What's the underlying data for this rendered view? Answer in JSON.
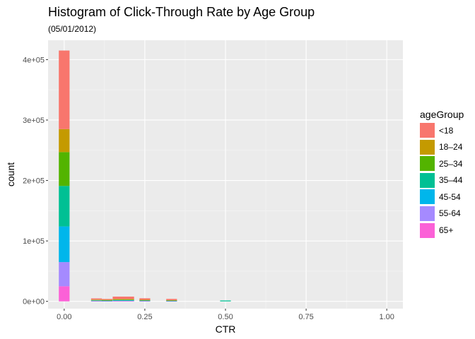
{
  "chart_data": {
    "type": "bar",
    "title": "Histogram of Click-Through Rate by Age Group",
    "subtitle": "(05/01/2012)",
    "xlabel": "CTR",
    "ylabel": "count",
    "xlim": [
      -0.05,
      1.05
    ],
    "ylim": [
      -12000,
      432000
    ],
    "x_ticks": [
      0,
      0.25,
      0.5,
      0.75,
      1
    ],
    "x_tick_labels": [
      "0.00",
      "0.25",
      "0.50",
      "0.75",
      "1.00"
    ],
    "y_ticks": [
      0,
      100000,
      200000,
      300000,
      400000
    ],
    "y_tick_labels": [
      "0e+00",
      "1e+05",
      "2e+05",
      "3e+05",
      "4e+05"
    ],
    "bin_width": 0.0333,
    "bins": [
      0,
      0.1,
      0.133,
      0.167,
      0.2,
      0.25,
      0.333,
      0.5
    ],
    "stacked": true,
    "legend_title": "ageGroup",
    "legend_position": "right",
    "grid": true,
    "series": [
      {
        "name": "<18",
        "color": "#F8766D",
        "values": [
          130000,
          2000,
          1500,
          4000,
          4000,
          2500,
          2000,
          0
        ]
      },
      {
        "name": "18–24",
        "color": "#C49A00",
        "values": [
          38000,
          600,
          500,
          900,
          900,
          500,
          500,
          0
        ]
      },
      {
        "name": "25–34",
        "color": "#53B400",
        "values": [
          56000,
          600,
          500,
          800,
          800,
          500,
          400,
          0
        ]
      },
      {
        "name": "35–44",
        "color": "#00C094",
        "values": [
          67000,
          500,
          500,
          700,
          700,
          500,
          400,
          1500
        ]
      },
      {
        "name": "45-54",
        "color": "#00B6EB",
        "values": [
          59000,
          500,
          400,
          600,
          600,
          400,
          300,
          0
        ]
      },
      {
        "name": "55-64",
        "color": "#A58AFF",
        "values": [
          40000,
          400,
          300,
          500,
          500,
          400,
          300,
          0
        ]
      },
      {
        "name": "65+",
        "color": "#FB61D7",
        "values": [
          25000,
          300,
          300,
          400,
          400,
          300,
          200,
          0
        ]
      }
    ]
  }
}
